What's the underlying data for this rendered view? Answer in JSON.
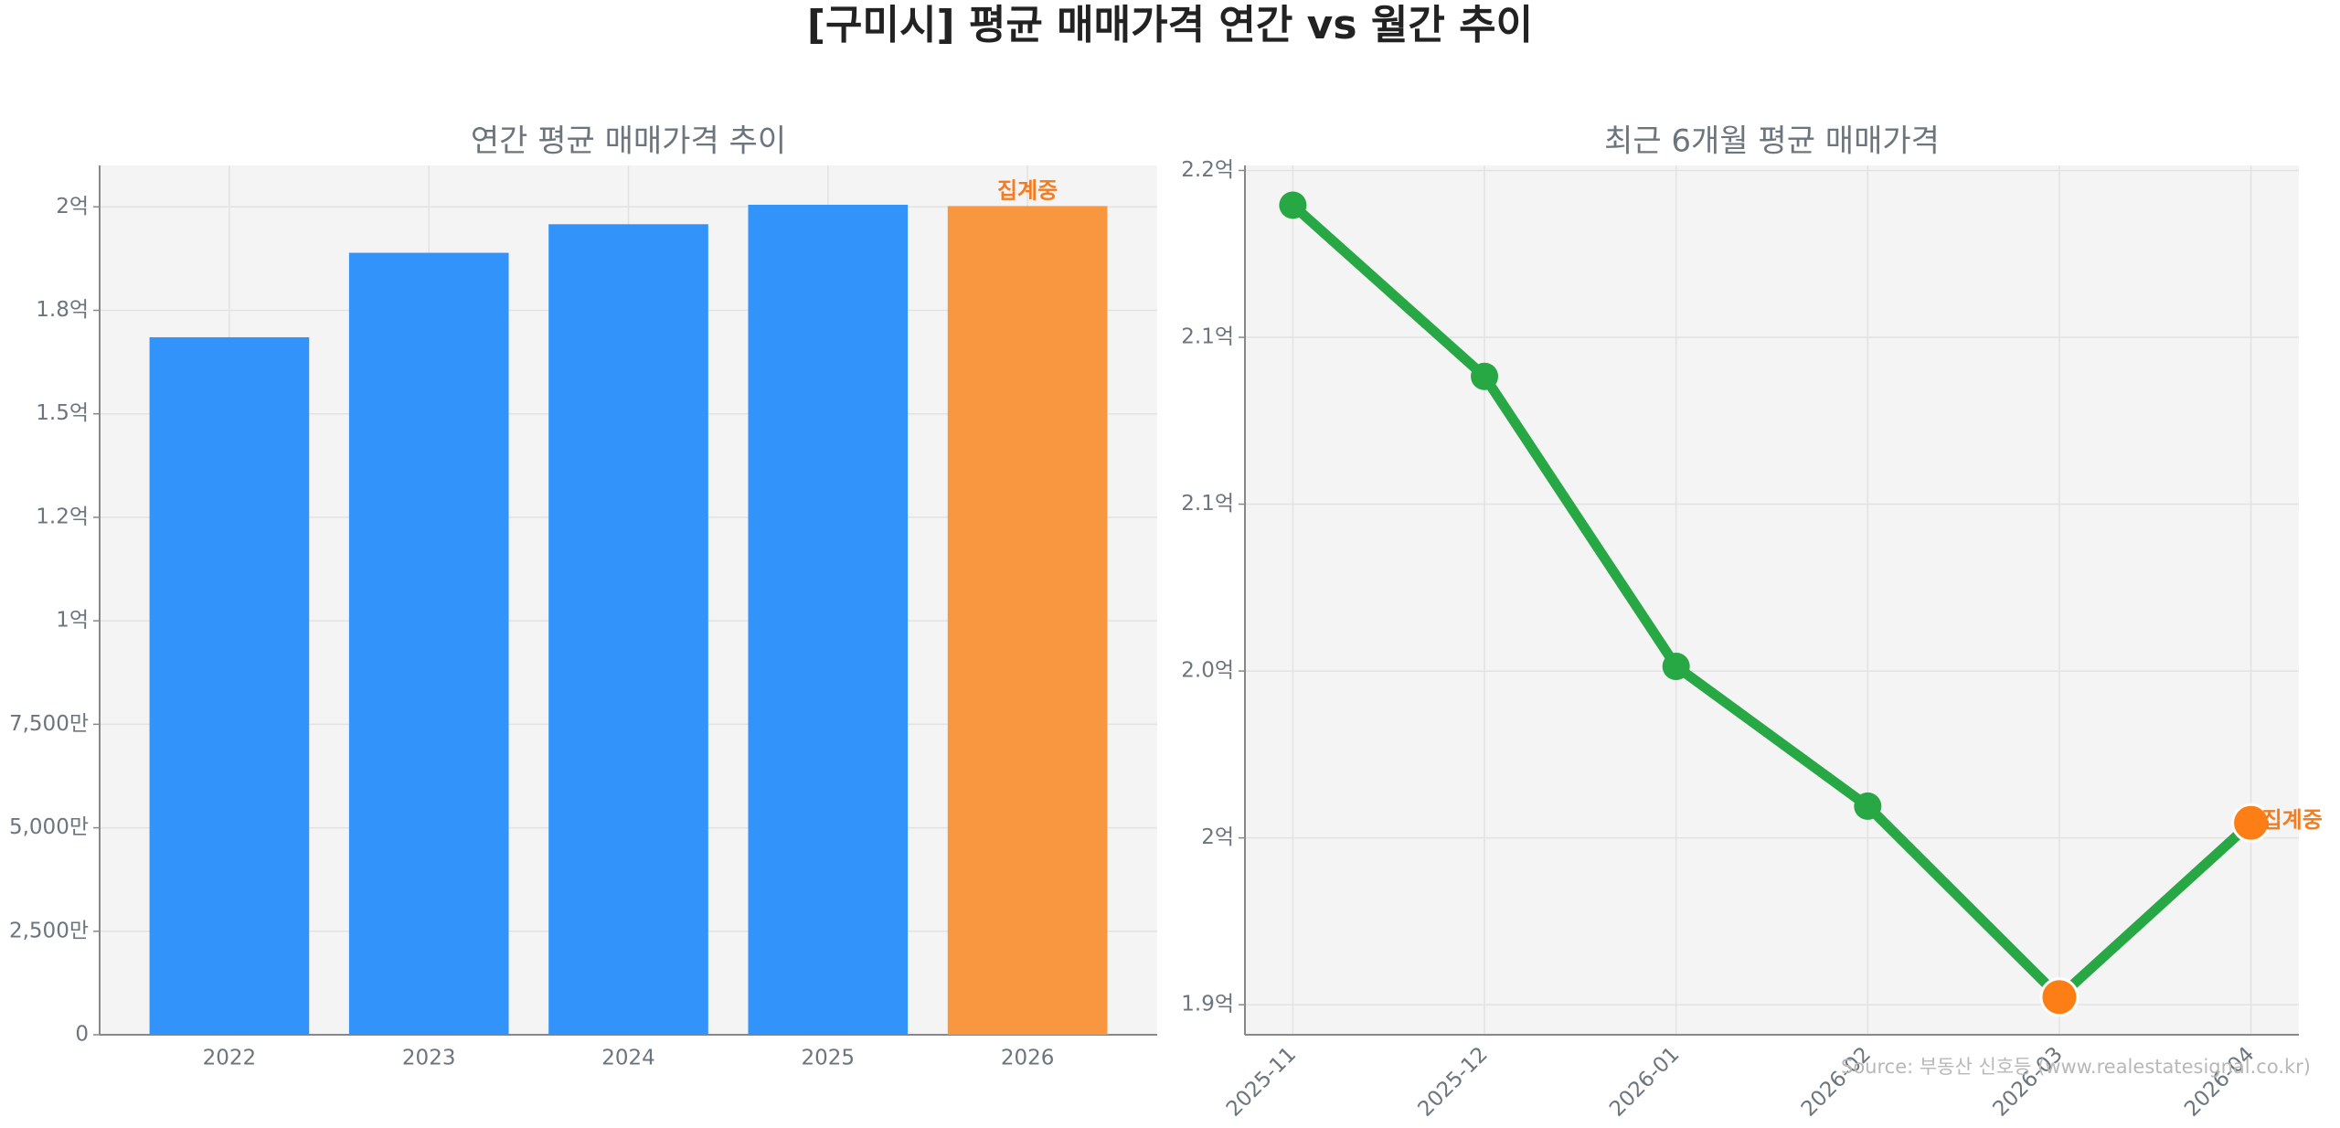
{
  "title": "[구미시] 평균 매매가격 연간 vs 월간 추이",
  "source": "Source: 부동산 신호등 (www.realestatesignal.co.kr)",
  "chart_data": [
    {
      "type": "bar",
      "title": "연간 평균 매매가격 추이",
      "categories": [
        "2022",
        "2023",
        "2024",
        "2025",
        "2026"
      ],
      "values": [
        168500000,
        188900000,
        195800000,
        200500000,
        200200000
      ],
      "colors": [
        "#3293fb",
        "#3293fb",
        "#3293fb",
        "#3293fb",
        "#f99740"
      ],
      "annotation": "집계중",
      "annotation_color": "#f47c20",
      "ylim": [
        0,
        210000000
      ],
      "yticks": [
        0,
        {
          "value": 25000000,
          "label": "2,500만"
        },
        {
          "value": 50000000,
          "label": "5,000만"
        },
        {
          "value": 75000000,
          "label": "7,500만"
        },
        {
          "value": 100000000,
          "label": "1억"
        },
        {
          "value": 125000000,
          "label": "1.2억"
        },
        {
          "value": 150000000,
          "label": "1.5억"
        },
        {
          "value": 175000000,
          "label": "1.8억"
        },
        {
          "value": 200000000,
          "label": "2억"
        }
      ],
      "grid": true
    },
    {
      "type": "line",
      "title": "최근 6개월 평균 매매가격",
      "categories": [
        "2025-11",
        "2025-12",
        "2026-01",
        "2026-02",
        "2026-03",
        "2026-04"
      ],
      "values": [
        213960000,
        208830000,
        200140000,
        195950000,
        190230000,
        195450000
      ],
      "color": "#28a745",
      "marker_colors": [
        "#28a745",
        "#28a745",
        "#28a745",
        "#28a745",
        "#fd7e14",
        "#fd7e14"
      ],
      "annotation": "집계중",
      "annotation_color": "#f47c20",
      "ylim": [
        189100000,
        215150000
      ],
      "yticks": [
        {
          "value": 190000000,
          "label": "1.9억"
        },
        {
          "value": 195000000,
          "label": "2억"
        },
        {
          "value": 200000000,
          "label": "2.0억"
        },
        {
          "value": 205000000,
          "label": "2.1억"
        },
        {
          "value": 210000000,
          "label": "2.1억"
        },
        {
          "value": 215000000,
          "label": "2.2억"
        }
      ],
      "grid": true
    }
  ]
}
